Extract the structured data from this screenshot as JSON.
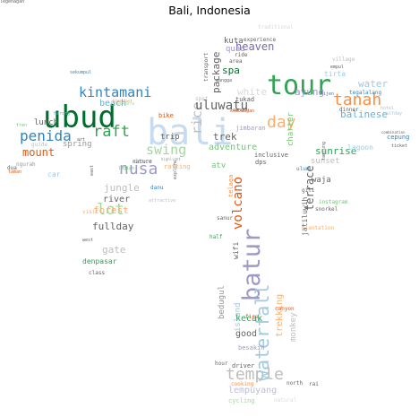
{
  "title": "Bali, Indonesia",
  "colors": {
    "green": "#31a354",
    "dgreen": "#006d2c",
    "lgreen": "#74c476",
    "pgreen": "#a1d99b",
    "blue": "#3182bd",
    "lblue": "#6baed6",
    "pblue": "#9ecae1",
    "vpblue": "#c6dbef",
    "orange": "#e6550d",
    "lorange": "#fd8d3c",
    "porange": "#fdae6b",
    "purple": "#756bb1",
    "lpurple": "#9e9ac8",
    "ppurple": "#bcbddc",
    "grey": "#636363",
    "lgrey": "#969696",
    "pgrey": "#bdbdbd",
    "vpgrey": "#d9d9d9"
  },
  "words": [
    {
      "text": "bali",
      "size": 40,
      "color": "vpblue",
      "rot": 0
    },
    {
      "text": "ubud",
      "size": 34,
      "color": "dgreen",
      "rot": 0
    },
    {
      "text": "tour",
      "size": 30,
      "color": "green",
      "rot": 0
    },
    {
      "text": "batur",
      "size": 27,
      "color": "lpurple",
      "rot": -90
    },
    {
      "text": "temple",
      "size": 18,
      "color": "pgrey",
      "rot": 0
    },
    {
      "text": "waterfall",
      "size": 20,
      "color": "pblue",
      "rot": -90
    },
    {
      "text": "tanah",
      "size": 18,
      "color": "lorange",
      "rot": 0
    },
    {
      "text": "penida",
      "size": 16,
      "color": "blue",
      "rot": 0
    },
    {
      "text": "kintamani",
      "size": 15,
      "color": "blue",
      "rot": 0
    },
    {
      "text": "nusa",
      "size": 18,
      "color": "lpurple",
      "rot": 0
    },
    {
      "text": "raft",
      "size": 17,
      "color": "green",
      "rot": 0
    },
    {
      "text": "day",
      "size": 18,
      "color": "porange",
      "rot": 0
    },
    {
      "text": "lot",
      "size": 17,
      "color": "pgreen",
      "rot": 0
    },
    {
      "text": "swing",
      "size": 15,
      "color": "pgreen",
      "rot": 0
    },
    {
      "text": "rice",
      "size": 15,
      "color": "pgrey",
      "rot": -90
    },
    {
      "text": "uluwatu",
      "size": 14,
      "color": "grey",
      "rot": 0
    },
    {
      "text": "volcano",
      "size": 14,
      "color": "orange",
      "rot": -90
    },
    {
      "text": "heaven",
      "size": 12,
      "color": "purple",
      "rot": 0
    },
    {
      "text": "terrace",
      "size": 12,
      "color": "grey",
      "rot": -90
    },
    {
      "text": "mount",
      "size": 12,
      "color": "orange",
      "rot": 0
    },
    {
      "text": "beach",
      "size": 10,
      "color": "lblue",
      "rot": 0
    },
    {
      "text": "sunrise",
      "size": 11,
      "color": "green",
      "rot": 0
    },
    {
      "text": "balinese",
      "size": 11,
      "color": "lblue",
      "rot": 0
    },
    {
      "text": "ayung",
      "size": 11,
      "color": "lpurple",
      "rot": 0
    },
    {
      "text": "white",
      "size": 11,
      "color": "vpgrey",
      "rot": 0
    },
    {
      "text": "water",
      "size": 11,
      "color": "pblue",
      "rot": 0
    },
    {
      "text": "package",
      "size": 11,
      "color": "grey",
      "rot": -90
    },
    {
      "text": "spa",
      "size": 11,
      "color": "dgreen",
      "rot": 0
    },
    {
      "text": "adventure",
      "size": 10,
      "color": "lgreen",
      "rot": 0
    },
    {
      "text": "trek",
      "size": 11,
      "color": "grey",
      "rot": 0
    },
    {
      "text": "jungle",
      "size": 11,
      "color": "pgrey",
      "rot": 0
    },
    {
      "text": "fullday",
      "size": 11,
      "color": "grey",
      "rot": 0
    },
    {
      "text": "river",
      "size": 10,
      "color": "grey",
      "rot": 0
    },
    {
      "text": "forest",
      "size": 11,
      "color": "porange",
      "rot": 0
    },
    {
      "text": "gate",
      "size": 11,
      "color": "pgrey",
      "rot": 0
    },
    {
      "text": "kecak",
      "size": 10,
      "color": "green",
      "rot": 0
    },
    {
      "text": "good",
      "size": 10,
      "color": "grey",
      "rot": 0
    },
    {
      "text": "lempuyang",
      "size": 10,
      "color": "ppurple",
      "rot": 0
    },
    {
      "text": "trekking",
      "size": 10,
      "color": "porange",
      "rot": -90
    },
    {
      "text": "monkey",
      "size": 9,
      "color": "pgrey",
      "rot": -90
    },
    {
      "text": "bedugul",
      "size": 9,
      "color": "lgrey",
      "rot": -90
    },
    {
      "text": "island",
      "size": 9,
      "color": "pblue",
      "rot": -90
    },
    {
      "text": "quad",
      "size": 9,
      "color": "lpurple",
      "rot": 0
    },
    {
      "text": "kuta",
      "size": 9,
      "color": "grey",
      "rot": 0
    },
    {
      "text": "atv",
      "size": 9,
      "color": "lgreen",
      "rot": 0
    },
    {
      "text": "waja",
      "size": 9,
      "color": "grey",
      "rot": 0
    },
    {
      "text": "sunset",
      "size": 9,
      "color": "pgrey",
      "rot": 0
    },
    {
      "text": "lunch",
      "size": 9,
      "color": "grey",
      "rot": 0
    },
    {
      "text": "spring",
      "size": 9,
      "color": "lgrey",
      "rot": 0
    },
    {
      "text": "trip",
      "size": 9,
      "color": "grey",
      "rot": 0
    },
    {
      "text": "charter",
      "size": 9,
      "color": "lgreen",
      "rot": -90
    },
    {
      "text": "lagoon",
      "size": 8,
      "color": "pblue",
      "rot": 0
    },
    {
      "text": "tirta",
      "size": 8,
      "color": "pblue",
      "rot": 0
    },
    {
      "text": "cepung",
      "size": 7,
      "color": "blue",
      "rot": 0
    },
    {
      "text": "jatiluwih",
      "size": 8,
      "color": "grey",
      "rot": -90
    },
    {
      "text": "inclusive",
      "size": 7,
      "color": "grey",
      "rot": 0
    },
    {
      "text": "dps",
      "size": 7,
      "color": "grey",
      "rot": 0
    },
    {
      "text": "wifi",
      "size": 8,
      "color": "grey",
      "rot": -90
    },
    {
      "text": "telaga",
      "size": 7,
      "color": "lorange",
      "rot": -90
    },
    {
      "text": "denpasar",
      "size": 8,
      "color": "green",
      "rot": 0
    },
    {
      "text": "besakih",
      "size": 7,
      "color": "lpurple",
      "rot": 0
    },
    {
      "text": "driver",
      "size": 7,
      "color": "grey",
      "rot": 0
    },
    {
      "text": "cycling",
      "size": 7,
      "color": "pgreen",
      "rot": 0
    },
    {
      "text": "north",
      "size": 6,
      "color": "grey",
      "rot": 0
    },
    {
      "text": "rai",
      "size": 6,
      "color": "grey",
      "rot": 0
    },
    {
      "text": "natural",
      "size": 6,
      "color": "vpgrey",
      "rot": 0
    },
    {
      "text": "cooking",
      "size": 6,
      "color": "lorange",
      "rot": 0
    },
    {
      "text": "hour",
      "size": 6,
      "color": "grey",
      "rot": 0
    },
    {
      "text": "ride",
      "size": 6,
      "color": "grey",
      "rot": 0
    },
    {
      "text": "area",
      "size": 6,
      "color": "grey",
      "rot": 0
    },
    {
      "text": "experience",
      "size": 6,
      "color": "grey",
      "rot": 0
    },
    {
      "text": "traditional",
      "size": 6,
      "color": "vpgrey",
      "rot": 0
    },
    {
      "text": "village",
      "size": 6,
      "color": "pgrey",
      "rot": 0
    },
    {
      "text": "snorkel",
      "size": 6,
      "color": "grey",
      "rot": 0
    },
    {
      "text": "plantation",
      "size": 6,
      "color": "porange",
      "rot": 0
    },
    {
      "text": "instagram",
      "size": 6,
      "color": "lgreen",
      "rot": 0
    },
    {
      "text": "gili",
      "size": 6,
      "color": "grey",
      "rot": 0
    },
    {
      "text": "ulun",
      "size": 6,
      "color": "blue",
      "rot": 0
    },
    {
      "text": "bike",
      "size": 7,
      "color": "orange",
      "rot": 0
    },
    {
      "text": "rafting",
      "size": 7,
      "color": "porange",
      "rot": 0
    },
    {
      "text": "dance",
      "size": 7,
      "color": "pgrey",
      "rot": 0
    },
    {
      "text": "nature",
      "size": 6,
      "color": "grey",
      "rot": 0
    },
    {
      "text": "danu",
      "size": 6,
      "color": "blue",
      "rot": 0
    },
    {
      "text": "visit",
      "size": 6,
      "color": "porange",
      "rot": 0
    },
    {
      "text": "class",
      "size": 6,
      "color": "grey",
      "rot": 0
    },
    {
      "text": "sanur",
      "size": 6,
      "color": "grey",
      "rot": 0
    },
    {
      "text": "fire",
      "size": 6,
      "color": "orange",
      "rot": 0
    },
    {
      "text": "canyon",
      "size": 6,
      "color": "orange",
      "rot": 0
    },
    {
      "text": "half",
      "size": 6,
      "color": "green",
      "rot": 0
    },
    {
      "text": "tegalalang",
      "size": 6,
      "color": "blue",
      "rot": 0
    },
    {
      "text": "dinner",
      "size": 6,
      "color": "grey",
      "rot": 0
    },
    {
      "text": "halfday",
      "size": 5,
      "color": "pblue",
      "rot": 0
    },
    {
      "text": "ticket",
      "size": 5,
      "color": "grey",
      "rot": 0
    },
    {
      "text": "combination",
      "size": 4,
      "color": "grey",
      "rot": 0
    },
    {
      "text": "hotel",
      "size": 5,
      "color": "pgrey",
      "rot": 0
    },
    {
      "text": "empul",
      "size": 5,
      "color": "grey",
      "rot": 0
    },
    {
      "text": "ijen",
      "size": 5,
      "color": "blue",
      "rot": 0
    },
    {
      "text": "tukad",
      "size": 7,
      "color": "grey",
      "rot": 0
    },
    {
      "text": "jimbaran",
      "size": 7,
      "color": "lpurple",
      "rot": 0
    },
    {
      "text": "kembangan",
      "size": 5,
      "color": "orange",
      "rot": 0
    },
    {
      "text": "canggu",
      "size": 5,
      "color": "grey",
      "rot": 0
    },
    {
      "text": "gangga",
      "size": 5,
      "color": "grey",
      "rot": 0
    },
    {
      "text": "spot",
      "size": 6,
      "color": "pgrey",
      "rot": 0
    },
    {
      "text": "transport",
      "size": 6,
      "color": "grey",
      "rot": -90
    },
    {
      "text": "tanjung",
      "size": 5,
      "color": "grey",
      "rot": -90
    },
    {
      "text": "east",
      "size": 5,
      "color": "grey",
      "rot": -90
    },
    {
      "text": "guide",
      "size": 6,
      "color": "pgrey",
      "rot": 0
    },
    {
      "text": "ngurah",
      "size": 6,
      "color": "lgrey",
      "rot": 0
    },
    {
      "text": "dua",
      "size": 6,
      "color": "grey",
      "rot": 0
    },
    {
      "text": "car",
      "size": 8,
      "color": "pblue",
      "rot": 0
    },
    {
      "text": "taman",
      "size": 5,
      "color": "orange",
      "rot": 0
    },
    {
      "text": "sekumpul",
      "size": 5,
      "color": "blue",
      "rot": 0
    },
    {
      "text": "harong",
      "size": 5,
      "color": "lblue",
      "rot": 0
    },
    {
      "text": "fren",
      "size": 5,
      "color": "lgreen",
      "rot": 0
    },
    {
      "text": "art",
      "size": 5,
      "color": "grey",
      "rot": 0
    },
    {
      "text": "bandara",
      "size": 5,
      "color": "pgreen",
      "rot": 0
    },
    {
      "text": "legian",
      "size": 5,
      "color": "lgreen",
      "rot": 0
    },
    {
      "text": "west",
      "size": 5,
      "color": "grey",
      "rot": 0
    },
    {
      "text": "attractive",
      "size": 5,
      "color": "pgrey",
      "rot": 0
    },
    {
      "text": "explore",
      "size": 5,
      "color": "grey",
      "rot": -90
    },
    {
      "text": "highlight",
      "size": 4,
      "color": "lgrey",
      "rot": 0
    },
    {
      "text": "breakfast",
      "size": 4,
      "color": "lorange",
      "rot": 0
    },
    {
      "text": "legenagan",
      "size": 5,
      "color": "grey",
      "rot": 0
    }
  ]
}
